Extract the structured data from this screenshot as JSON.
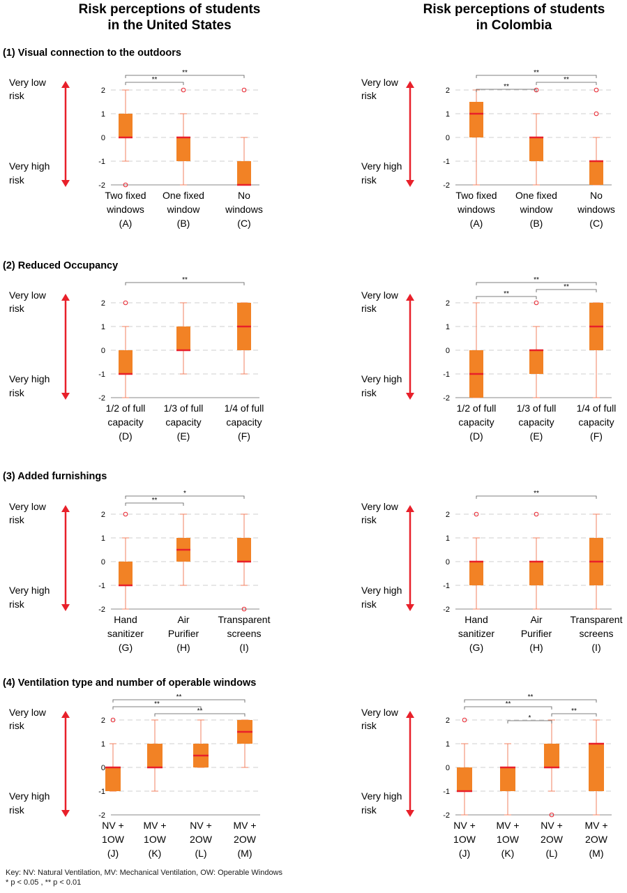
{
  "colors": {
    "box": "#F28225",
    "median": "#E8202A",
    "whisker": "#F08060",
    "axis_arrow": "#E8202A",
    "outlier": "#E8202A",
    "grid": "#CFCFCF",
    "bracket": "#555555"
  },
  "column_titles": [
    [
      "Risk perceptions of students",
      "in the United States"
    ],
    [
      "Risk perceptions of students",
      "in Colombia"
    ]
  ],
  "side_labels": {
    "low": [
      "Very low",
      "risk"
    ],
    "high": [
      "Very high",
      "risk"
    ]
  },
  "key": {
    "line1": "Key:   NV: Natural Ventilation,  MV: Mechanical Ventilation, OW: Operable Windows",
    "line2": "* p < 0.05 , ** p < 0.01"
  },
  "chart_data": [
    {
      "type": "box",
      "section": "(1) Visual connection to the outdoors",
      "country": "United States",
      "ylim": [
        -2,
        2
      ],
      "yticks": [
        "2",
        "1",
        "0",
        "-1",
        "-2"
      ],
      "categories": [
        [
          "Two fixed",
          "windows",
          "(A)"
        ],
        [
          "One fixed",
          "window",
          "(B)"
        ],
        [
          "No",
          "windows",
          "(C)"
        ]
      ],
      "boxes": [
        {
          "min": -1,
          "q1": 0,
          "median": 0,
          "q3": 1,
          "max": 2,
          "outliers": [
            -2
          ]
        },
        {
          "min": -2,
          "q1": -1,
          "median": 0,
          "q3": 0,
          "max": 1,
          "outliers": [
            2
          ]
        },
        {
          "min": -2,
          "q1": -2,
          "median": -2,
          "q3": -1,
          "max": 0,
          "outliers": [
            2
          ]
        }
      ],
      "significance": [
        {
          "from": 0,
          "to": 1,
          "label": "**"
        },
        {
          "from": 0,
          "to": 2,
          "label": "**"
        }
      ]
    },
    {
      "type": "box",
      "section": "(1) Visual connection to the outdoors",
      "country": "Colombia",
      "ylim": [
        -2,
        2
      ],
      "yticks": [
        "2",
        "1",
        "0",
        "-1",
        "-2"
      ],
      "categories": [
        [
          "Two fixed",
          "windows",
          "(A)"
        ],
        [
          "One fixed",
          "window",
          "(B)"
        ],
        [
          "No",
          "windows",
          "(C)"
        ]
      ],
      "boxes": [
        {
          "min": -2,
          "q1": 0,
          "median": 1,
          "q3": 1.5,
          "max": 2,
          "outliers": []
        },
        {
          "min": -2,
          "q1": -1,
          "median": 0,
          "q3": 0,
          "max": 1,
          "outliers": [
            2
          ]
        },
        {
          "min": -2,
          "q1": -2,
          "median": -1,
          "q3": -1,
          "max": 0,
          "outliers": [
            2,
            1
          ]
        }
      ],
      "significance": [
        {
          "from": 0,
          "to": 1,
          "label": "**"
        },
        {
          "from": 1,
          "to": 2,
          "label": "**"
        },
        {
          "from": 0,
          "to": 2,
          "label": "**"
        }
      ]
    },
    {
      "type": "box",
      "section": "(2) Reduced Occupancy",
      "country": "United States",
      "ylim": [
        -2,
        2
      ],
      "yticks": [
        "2",
        "1",
        "0",
        "-1",
        "-2"
      ],
      "categories": [
        [
          "1/2 of full",
          "capacity",
          "(D)"
        ],
        [
          "1/3 of full",
          "capacity",
          "(E)"
        ],
        [
          "1/4 of full",
          "capacity",
          "(F)"
        ]
      ],
      "boxes": [
        {
          "min": -2,
          "q1": -1,
          "median": -1,
          "q3": 0,
          "max": 1,
          "outliers": [
            2
          ]
        },
        {
          "min": -1,
          "q1": 0,
          "median": 0,
          "q3": 1,
          "max": 2,
          "outliers": []
        },
        {
          "min": -1,
          "q1": 0,
          "median": 1,
          "q3": 2,
          "max": 2,
          "outliers": []
        }
      ],
      "significance": [
        {
          "from": 0,
          "to": 2,
          "label": "**"
        }
      ]
    },
    {
      "type": "box",
      "section": "(2) Reduced Occupancy",
      "country": "Colombia",
      "ylim": [
        -2,
        2
      ],
      "yticks": [
        "2",
        "1",
        "0",
        "-1",
        "-2"
      ],
      "categories": [
        [
          "1/2 of full",
          "capacity",
          "(D)"
        ],
        [
          "1/3 of full",
          "capacity",
          "(E)"
        ],
        [
          "1/4 of full",
          "capacity",
          "(F)"
        ]
      ],
      "boxes": [
        {
          "min": -2,
          "q1": -2,
          "median": -1,
          "q3": 0,
          "max": 2,
          "outliers": []
        },
        {
          "min": -2,
          "q1": -1,
          "median": 0,
          "q3": 0,
          "max": 1,
          "outliers": [
            2
          ]
        },
        {
          "min": -2,
          "q1": 0,
          "median": 1,
          "q3": 2,
          "max": 2,
          "outliers": []
        }
      ],
      "significance": [
        {
          "from": 0,
          "to": 1,
          "label": "**"
        },
        {
          "from": 1,
          "to": 2,
          "label": "**"
        },
        {
          "from": 0,
          "to": 2,
          "label": "**"
        }
      ]
    },
    {
      "type": "box",
      "section": "(3) Added furnishings",
      "country": "United States",
      "ylim": [
        -2,
        2
      ],
      "yticks": [
        "2",
        "1",
        "0",
        "-1",
        "-2"
      ],
      "categories": [
        [
          "Hand",
          "sanitizer",
          "(G)"
        ],
        [
          "Air",
          "Purifier",
          "(H)"
        ],
        [
          "Transparent",
          "screens",
          "(I)"
        ]
      ],
      "boxes": [
        {
          "min": -2,
          "q1": -1,
          "median": -1,
          "q3": 0,
          "max": 1,
          "outliers": [
            2
          ]
        },
        {
          "min": -1,
          "q1": 0,
          "median": 0.5,
          "q3": 1,
          "max": 2,
          "outliers": []
        },
        {
          "min": -1,
          "q1": 0,
          "median": 0,
          "q3": 1,
          "max": 2,
          "outliers": [
            -2
          ]
        }
      ],
      "significance": [
        {
          "from": 0,
          "to": 1,
          "label": "**"
        },
        {
          "from": 0,
          "to": 2,
          "label": "*"
        }
      ]
    },
    {
      "type": "box",
      "section": "(3) Added furnishings",
      "country": "Colombia",
      "ylim": [
        -2,
        2
      ],
      "yticks": [
        "2",
        "1",
        "0",
        "-1",
        "-2"
      ],
      "categories": [
        [
          "Hand",
          "sanitizer",
          "(G)"
        ],
        [
          "Air",
          "Purifier",
          "(H)"
        ],
        [
          "Transparent",
          "screens",
          "(I)"
        ]
      ],
      "boxes": [
        {
          "min": -2,
          "q1": -1,
          "median": 0,
          "q3": 0,
          "max": 1,
          "outliers": [
            2
          ]
        },
        {
          "min": -2,
          "q1": -1,
          "median": 0,
          "q3": 0,
          "max": 1,
          "outliers": [
            2
          ]
        },
        {
          "min": -2,
          "q1": -1,
          "median": 0,
          "q3": 1,
          "max": 2,
          "outliers": []
        }
      ],
      "significance": [
        {
          "from": 0,
          "to": 2,
          "label": "**"
        }
      ]
    },
    {
      "type": "box",
      "section": "(4) Ventilation type and number of operable windows",
      "country": "United States",
      "ylim": [
        -2,
        2
      ],
      "yticks": [
        "2",
        "1",
        "0",
        "-1",
        "-2"
      ],
      "categories": [
        [
          "NV +",
          "1OW",
          "(J)"
        ],
        [
          "MV +",
          "1OW",
          "(K)"
        ],
        [
          "NV +",
          "2OW",
          "(L)"
        ],
        [
          "MV +",
          "2OW",
          "(M)"
        ]
      ],
      "boxes": [
        {
          "min": -1,
          "q1": -1,
          "median": 0,
          "q3": 0,
          "max": 1,
          "outliers": [
            2
          ]
        },
        {
          "min": -1,
          "q1": 0,
          "median": 0,
          "q3": 1,
          "max": 2,
          "outliers": []
        },
        {
          "min": 0,
          "q1": 0,
          "median": 0.5,
          "q3": 1,
          "max": 2,
          "outliers": []
        },
        {
          "min": 0,
          "q1": 1,
          "median": 1.5,
          "q3": 2,
          "max": 2,
          "outliers": []
        }
      ],
      "significance": [
        {
          "from": 1,
          "to": 3,
          "label": "**"
        },
        {
          "from": 0,
          "to": 2,
          "label": "**"
        },
        {
          "from": 0,
          "to": 3,
          "label": "**"
        }
      ]
    },
    {
      "type": "box",
      "section": "(4) Ventilation type and number of operable windows",
      "country": "Colombia",
      "ylim": [
        -2,
        2
      ],
      "yticks": [
        "2",
        "1",
        "0",
        "-1",
        "-2"
      ],
      "categories": [
        [
          "NV +",
          "1OW",
          "(J)"
        ],
        [
          "MV +",
          "1OW",
          "(K)"
        ],
        [
          "NV +",
          "2OW",
          "(L)"
        ],
        [
          "MV +",
          "2OW",
          "(M)"
        ]
      ],
      "boxes": [
        {
          "min": -2,
          "q1": -1,
          "median": -1,
          "q3": 0,
          "max": 1,
          "outliers": [
            2
          ]
        },
        {
          "min": -2,
          "q1": -1,
          "median": 0,
          "q3": 0,
          "max": 1,
          "outliers": []
        },
        {
          "min": -1,
          "q1": 0,
          "median": 0,
          "q3": 1,
          "max": 2,
          "outliers": [
            -2
          ]
        },
        {
          "min": -2,
          "q1": -1,
          "median": 1,
          "q3": 1,
          "max": 2,
          "outliers": []
        }
      ],
      "significance": [
        {
          "from": 1,
          "to": 2,
          "label": "*"
        },
        {
          "from": 0,
          "to": 2,
          "label": "**"
        },
        {
          "from": 2,
          "to": 3,
          "label": "**"
        },
        {
          "from": 0,
          "to": 3,
          "label": "**"
        }
      ]
    }
  ]
}
